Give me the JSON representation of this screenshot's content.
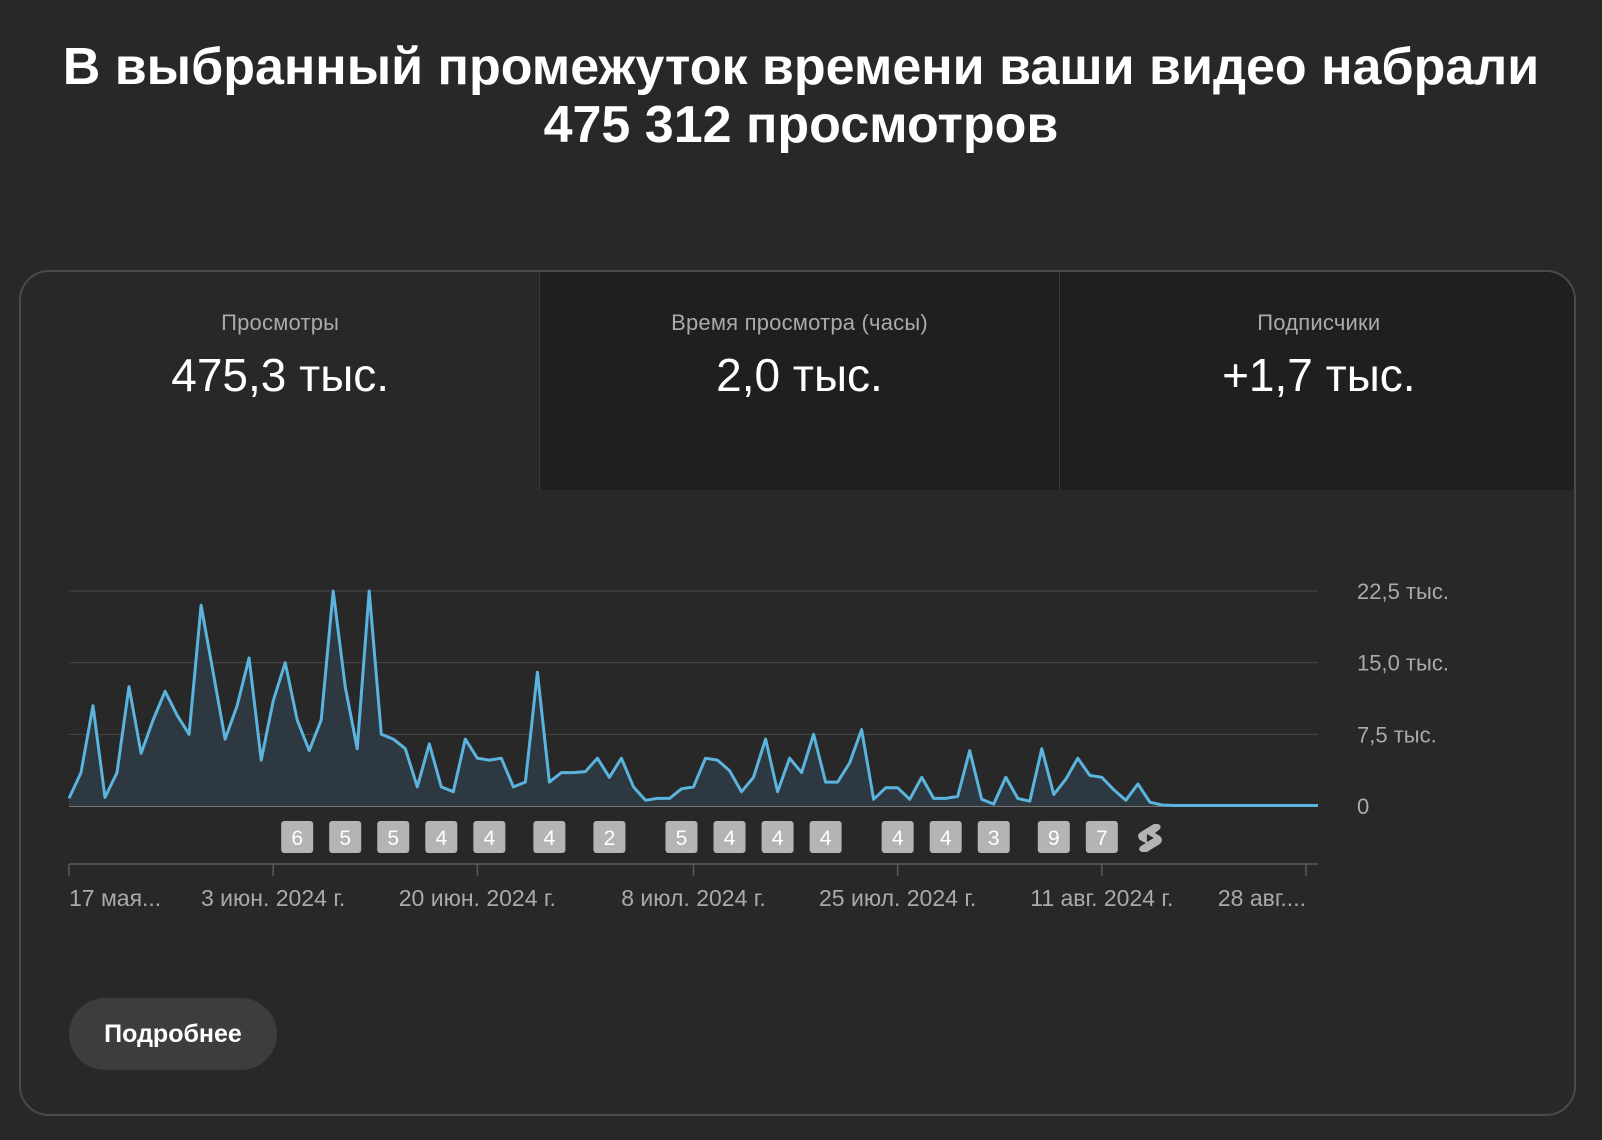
{
  "headline": {
    "line1": "В выбранный промежуток времени ваши видео набрали",
    "line2": "475 312 просмотров"
  },
  "tabs": [
    {
      "label": "Просмотры",
      "value": "475,3 тыс.",
      "active": true
    },
    {
      "label": "Время просмотра (часы)",
      "value": "2,0 тыс.",
      "active": false
    },
    {
      "label": "Подписчики",
      "value": "+1,7 тыс.",
      "active": false
    }
  ],
  "more_button": {
    "label": "Подробнее"
  },
  "colors": {
    "background": "#282828",
    "line": "#5bb4de",
    "area": "#2d3840",
    "marker_bg": "#b4b4b4",
    "grid": "#474747",
    "axis_text": "#aaaaaa"
  },
  "chart_data": {
    "type": "area",
    "ylim": [
      0,
      22500
    ],
    "y_ticks": [
      {
        "value": 0,
        "label": "0"
      },
      {
        "value": 7500,
        "label": "7,5 тыс."
      },
      {
        "value": 15000,
        "label": "15,0 тыс."
      },
      {
        "value": 22500,
        "label": "22,5 тыс."
      }
    ],
    "x_date_labels": [
      "17 мая...",
      "3 июн. 2024 г.",
      "20 июн. 2024 г.",
      "8 июл. 2024 г.",
      "25 июл. 2024 г.",
      "11 авг. 2024 г.",
      "28 авг...."
    ],
    "x_date_positions": [
      0,
      17,
      34,
      52,
      69,
      86,
      103
    ],
    "series": [
      {
        "values": [
          800,
          3500,
          10500,
          900,
          3500,
          12500,
          5500,
          9000,
          12000,
          9500,
          7500,
          21000,
          14000,
          7000,
          10500,
          15500,
          4800,
          11000,
          15000,
          9000,
          5800,
          9000,
          22500,
          12500,
          6000,
          22500,
          7500,
          7000,
          6000,
          2000,
          6500,
          2000,
          1500,
          7000,
          5000,
          4800,
          5000,
          2000,
          2500,
          14000,
          2500,
          3500,
          3500,
          3600,
          5000,
          3000,
          5000,
          2000,
          600,
          800,
          800,
          1800,
          2000,
          5000,
          4800,
          3700,
          1500,
          3000,
          7000,
          1500,
          5000,
          3500,
          7500,
          2500,
          2500,
          4500,
          8000,
          700,
          1900,
          1900,
          700,
          3000,
          800,
          800,
          1000,
          5800,
          700,
          200,
          3000,
          800,
          500,
          6000,
          1200,
          2800,
          5000,
          3200,
          3000,
          1700,
          600,
          2300,
          400,
          100,
          50,
          50,
          50,
          50,
          50,
          50,
          50,
          50,
          50,
          50,
          50,
          50,
          50
        ]
      }
    ],
    "upload_markers": [
      {
        "index": 19,
        "label": "6"
      },
      {
        "index": 23,
        "label": "5"
      },
      {
        "index": 27,
        "label": "5"
      },
      {
        "index": 31,
        "label": "4"
      },
      {
        "index": 35,
        "label": "4"
      },
      {
        "index": 40,
        "label": "4"
      },
      {
        "index": 45,
        "label": "2"
      },
      {
        "index": 51,
        "label": "5"
      },
      {
        "index": 55,
        "label": "4"
      },
      {
        "index": 59,
        "label": "4"
      },
      {
        "index": 63,
        "label": "4"
      },
      {
        "index": 69,
        "label": "4"
      },
      {
        "index": 73,
        "label": "4"
      },
      {
        "index": 77,
        "label": "3"
      },
      {
        "index": 82,
        "label": "9"
      },
      {
        "index": 86,
        "label": "7"
      },
      {
        "index": 90,
        "label": "",
        "icon": "shorts-icon"
      }
    ]
  }
}
